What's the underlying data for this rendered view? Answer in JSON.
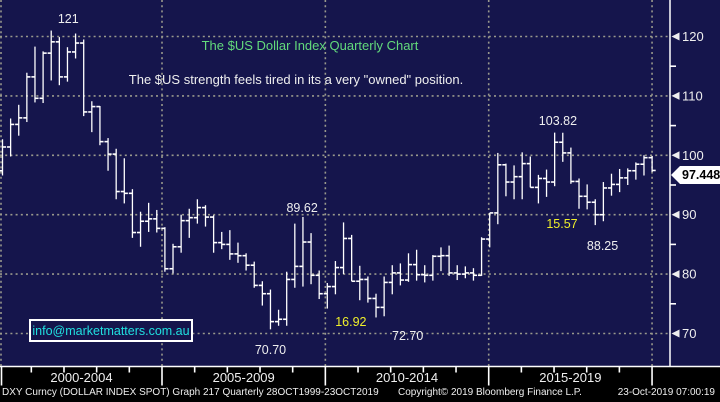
{
  "watermark": {
    "email": "info@marketmatters.com.au"
  },
  "footer": {
    "left": "DXY Curncy (DOLLAR INDEX SPOT) Graph 217  Quarterly 28OCT1999-23OCT2019",
    "copyright": "Copyright© 2019 Bloomberg Finance L.P.",
    "datetime": "23-Oct-2019 07:00:19"
  },
  "colors": {
    "background": "#15154C",
    "strip_background": "#000000",
    "bar": "#FFFFFF",
    "grid": "#99998C",
    "title_green": "#63DA7C",
    "text_white": "#EFEFEF",
    "annotation_yellow": "#F0F02A",
    "email_cyan": "#20E0E0",
    "price_tag_bg": "#FFFFFF",
    "price_tag_text": "#000000"
  },
  "chart_data": {
    "type": "ohlc-bar",
    "title": "The $US Dollar Index Quarterly Chart",
    "subtitle": "The $US strength feels tired in its a very \"owned\" position.",
    "period": "Quarterly",
    "range": "28OCT1999-23OCT2019",
    "last_price": "97.448",
    "y_axis": {
      "ticks": [
        120,
        110,
        100,
        90,
        80,
        70
      ],
      "minor_ticks": [
        115,
        105,
        95,
        85,
        75
      ],
      "ylim": [
        64,
        126
      ]
    },
    "x_axis": {
      "period_labels": [
        "2000-2004",
        "2005-2009",
        "2010-2014",
        "2015-2019"
      ],
      "gridline_years": [
        2000,
        2005,
        2010,
        2015,
        2020
      ],
      "year_tick_start": 2000,
      "year_tick_end": 2020
    },
    "annotations": [
      {
        "text": "121",
        "bar": 8.1,
        "value": 123.0,
        "color": "white"
      },
      {
        "text": "89.62",
        "bar": 36.9,
        "value": 91.2,
        "color": "white"
      },
      {
        "text": "70.70",
        "bar": 33.0,
        "value": 67.3,
        "color": "white"
      },
      {
        "text": "16.92",
        "bar": 42.9,
        "value": 71.9,
        "color": "yellow"
      },
      {
        "text": "72.70",
        "bar": 49.9,
        "value": 69.6,
        "color": "white"
      },
      {
        "text": "103.82",
        "bar": 68.4,
        "value": 105.8,
        "color": "white"
      },
      {
        "text": "15.57",
        "bar": 68.9,
        "value": 88.4,
        "color": "yellow"
      },
      {
        "text": "88.25",
        "bar": 73.9,
        "value": 84.8,
        "color": "white"
      }
    ],
    "quarters_start": "1999Q4",
    "bars": [
      [
        97.4,
        102.7,
        96.6,
        101.4
      ],
      [
        101.4,
        106.2,
        99.8,
        105.2
      ],
      [
        105.2,
        108.5,
        103.3,
        106.3
      ],
      [
        106.3,
        113.9,
        105.6,
        113.2
      ],
      [
        113.2,
        118.3,
        108.9,
        109.6
      ],
      [
        109.6,
        117.5,
        108.8,
        117.2
      ],
      [
        117.2,
        121.0,
        112.6,
        119.1
      ],
      [
        119.1,
        119.9,
        111.8,
        113.2
      ],
      [
        113.2,
        118.2,
        112.4,
        117.4
      ],
      [
        117.4,
        120.5,
        116.3,
        118.9
      ],
      [
        118.9,
        119.5,
        106.6,
        107.3
      ],
      [
        107.3,
        109.1,
        103.9,
        108.2
      ],
      [
        108.2,
        108.3,
        101.7,
        102.3
      ],
      [
        102.3,
        102.9,
        97.4,
        100.2
      ],
      [
        100.2,
        101.1,
        92.6,
        93.9
      ],
      [
        93.9,
        99.5,
        91.9,
        93.6
      ],
      [
        93.6,
        94.3,
        86.1,
        87.0
      ],
      [
        87.0,
        90.5,
        84.6,
        88.9
      ],
      [
        88.9,
        92.0,
        87.1,
        89.3
      ],
      [
        89.3,
        90.8,
        87.0,
        87.7
      ],
      [
        87.7,
        87.9,
        80.4,
        80.9
      ],
      [
        80.9,
        85.1,
        80.1,
        84.6
      ],
      [
        84.6,
        90.0,
        83.6,
        89.0
      ],
      [
        89.0,
        91.0,
        86.1,
        89.5
      ],
      [
        89.5,
        92.6,
        88.5,
        91.2
      ],
      [
        91.2,
        91.6,
        88.0,
        89.6
      ],
      [
        89.6,
        89.9,
        83.6,
        85.3
      ],
      [
        85.3,
        87.1,
        84.2,
        85.0
      ],
      [
        85.0,
        87.4,
        82.4,
        83.4
      ],
      [
        83.4,
        85.3,
        81.9,
        83.1
      ],
      [
        83.1,
        83.5,
        80.6,
        81.5
      ],
      [
        81.5,
        82.1,
        77.7,
        78.1
      ],
      [
        78.1,
        78.8,
        74.7,
        76.7
      ],
      [
        76.7,
        77.4,
        70.7,
        72.0
      ],
      [
        72.0,
        74.0,
        71.3,
        72.4
      ],
      [
        72.4,
        80.4,
        71.3,
        79.1
      ],
      [
        79.1,
        88.5,
        77.7,
        81.3
      ],
      [
        81.3,
        89.62,
        77.9,
        85.4
      ],
      [
        85.4,
        86.9,
        78.3,
        79.8
      ],
      [
        79.8,
        80.6,
        75.8,
        76.7
      ],
      [
        76.7,
        78.5,
        74.2,
        77.9
      ],
      [
        77.9,
        82.2,
        76.6,
        81.1
      ],
      [
        81.1,
        88.7,
        80.0,
        86.0
      ],
      [
        86.0,
        86.6,
        78.8,
        78.8
      ],
      [
        78.8,
        81.4,
        75.6,
        79.1
      ],
      [
        79.1,
        79.6,
        75.2,
        75.9
      ],
      [
        75.9,
        76.7,
        72.7,
        74.4
      ],
      [
        74.4,
        79.6,
        72.9,
        78.6
      ],
      [
        78.6,
        81.5,
        76.6,
        80.2
      ],
      [
        80.2,
        81.8,
        78.1,
        79.0
      ],
      [
        79.0,
        83.5,
        78.7,
        81.6
      ],
      [
        81.6,
        84.1,
        78.9,
        79.9
      ],
      [
        79.9,
        81.5,
        78.6,
        79.8
      ],
      [
        79.8,
        83.2,
        78.9,
        83.0
      ],
      [
        83.0,
        84.5,
        80.5,
        83.1
      ],
      [
        83.1,
        84.8,
        79.7,
        80.2
      ],
      [
        80.2,
        81.5,
        79.0,
        80.0
      ],
      [
        80.0,
        81.3,
        79.3,
        80.2
      ],
      [
        80.2,
        81.0,
        78.9,
        79.8
      ],
      [
        79.8,
        86.2,
        79.7,
        85.9
      ],
      [
        85.9,
        90.3,
        84.5,
        90.3
      ],
      [
        90.3,
        100.4,
        88.4,
        98.4
      ],
      [
        98.4,
        98.6,
        93.1,
        95.5
      ],
      [
        95.5,
        98.3,
        92.6,
        96.4
      ],
      [
        96.4,
        100.5,
        92.6,
        98.6
      ],
      [
        98.6,
        99.8,
        94.6,
        94.6
      ],
      [
        94.6,
        96.7,
        91.9,
        96.1
      ],
      [
        96.1,
        97.6,
        93.0,
        95.5
      ],
      [
        95.5,
        103.82,
        94.8,
        102.2
      ],
      [
        102.2,
        103.8,
        98.9,
        100.4
      ],
      [
        100.4,
        101.3,
        95.2,
        95.6
      ],
      [
        95.6,
        96.1,
        91.0,
        93.1
      ],
      [
        93.1,
        95.1,
        90.9,
        92.1
      ],
      [
        92.1,
        92.6,
        88.25,
        90.0
      ],
      [
        90.0,
        95.5,
        88.9,
        94.5
      ],
      [
        94.5,
        96.9,
        93.2,
        95.1
      ],
      [
        95.1,
        97.7,
        93.8,
        96.2
      ],
      [
        96.2,
        97.8,
        95.0,
        97.4
      ],
      [
        97.4,
        98.8,
        95.9,
        98.5
      ],
      [
        98.5,
        100.0,
        96.6,
        99.6
      ],
      [
        99.6,
        99.9,
        97.2,
        97.448
      ]
    ]
  }
}
